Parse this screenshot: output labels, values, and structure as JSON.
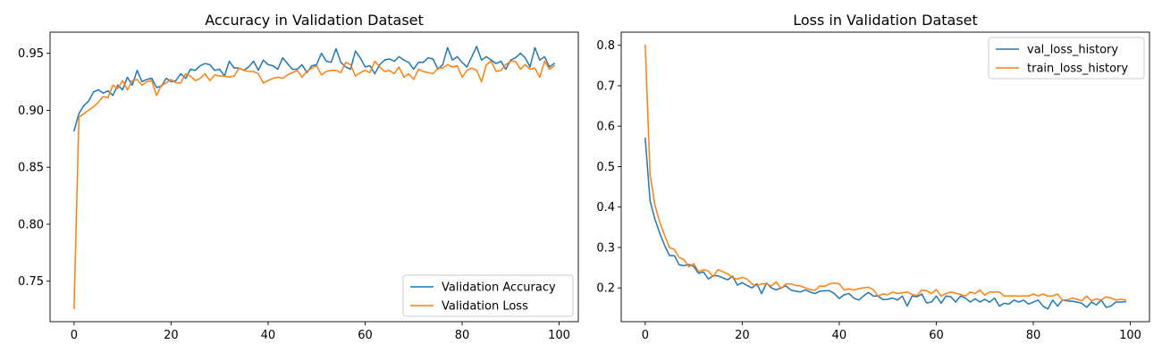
{
  "chart_data": [
    {
      "type": "line",
      "title": "Accuracy in Validation Dataset",
      "xlabel": "",
      "ylabel": "",
      "xlim": [
        -4.95,
        103.95
      ],
      "ylim": [
        0.7145,
        0.9685
      ],
      "xticks": [
        0,
        20,
        40,
        60,
        80,
        100
      ],
      "yticks": [
        0.75,
        0.8,
        0.85,
        0.9,
        0.95
      ],
      "ytick_labels": [
        "0.75",
        "0.80",
        "0.85",
        "0.90",
        "0.95"
      ],
      "grid": false,
      "legend_position": "lower-right",
      "x": [
        0,
        1,
        2,
        3,
        4,
        5,
        6,
        7,
        8,
        9,
        10,
        11,
        12,
        13,
        14,
        15,
        16,
        17,
        18,
        19,
        20,
        21,
        22,
        23,
        24,
        25,
        26,
        27,
        28,
        29,
        30,
        31,
        32,
        33,
        34,
        35,
        36,
        37,
        38,
        39,
        40,
        41,
        42,
        43,
        44,
        45,
        46,
        47,
        48,
        49,
        50,
        51,
        52,
        53,
        54,
        55,
        56,
        57,
        58,
        59,
        60,
        61,
        62,
        63,
        64,
        65,
        66,
        67,
        68,
        69,
        70,
        71,
        72,
        73,
        74,
        75,
        76,
        77,
        78,
        79,
        80,
        81,
        82,
        83,
        84,
        85,
        86,
        87,
        88,
        89,
        90,
        91,
        92,
        93,
        94,
        95,
        96,
        97,
        98,
        99
      ],
      "series": [
        {
          "name": "Validation Accuracy",
          "color": "#1f77b4",
          "values": [
            0.882,
            0.897,
            0.904,
            0.908,
            0.916,
            0.918,
            0.915,
            0.917,
            0.913,
            0.922,
            0.918,
            0.929,
            0.922,
            0.935,
            0.925,
            0.927,
            0.928,
            0.92,
            0.921,
            0.928,
            0.925,
            0.926,
            0.932,
            0.928,
            0.936,
            0.935,
            0.939,
            0.941,
            0.94,
            0.935,
            0.936,
            0.93,
            0.943,
            0.937,
            0.937,
            0.935,
            0.938,
            0.943,
            0.935,
            0.944,
            0.94,
            0.939,
            0.936,
            0.946,
            0.941,
            0.936,
            0.936,
            0.94,
            0.933,
            0.939,
            0.94,
            0.95,
            0.943,
            0.942,
            0.954,
            0.942,
            0.938,
            0.936,
            0.952,
            0.946,
            0.938,
            0.939,
            0.932,
            0.94,
            0.944,
            0.945,
            0.943,
            0.947,
            0.944,
            0.942,
            0.936,
            0.942,
            0.942,
            0.946,
            0.945,
            0.936,
            0.94,
            0.955,
            0.944,
            0.947,
            0.942,
            0.938,
            0.947,
            0.956,
            0.944,
            0.947,
            0.944,
            0.941,
            0.943,
            0.936,
            0.944,
            0.946,
            0.95,
            0.946,
            0.938,
            0.955,
            0.944,
            0.947,
            0.938,
            0.941
          ]
        },
        {
          "name": "Validation Loss",
          "color": "#ff7f0e",
          "values": [
            0.726,
            0.894,
            0.897,
            0.9,
            0.903,
            0.907,
            0.912,
            0.911,
            0.922,
            0.919,
            0.926,
            0.918,
            0.926,
            0.927,
            0.922,
            0.925,
            0.926,
            0.913,
            0.922,
            0.924,
            0.927,
            0.924,
            0.924,
            0.932,
            0.93,
            0.926,
            0.928,
            0.932,
            0.926,
            0.931,
            0.93,
            0.93,
            0.929,
            0.93,
            0.937,
            0.935,
            0.934,
            0.934,
            0.932,
            0.924,
            0.926,
            0.928,
            0.929,
            0.928,
            0.931,
            0.933,
            0.935,
            0.929,
            0.934,
            0.937,
            0.939,
            0.931,
            0.934,
            0.935,
            0.935,
            0.933,
            0.942,
            0.94,
            0.93,
            0.933,
            0.935,
            0.933,
            0.943,
            0.938,
            0.934,
            0.935,
            0.932,
            0.938,
            0.929,
            0.932,
            0.927,
            0.936,
            0.934,
            0.933,
            0.932,
            0.937,
            0.937,
            0.94,
            0.938,
            0.939,
            0.929,
            0.935,
            0.937,
            0.935,
            0.925,
            0.94,
            0.943,
            0.934,
            0.935,
            0.94,
            0.943,
            0.943,
            0.936,
            0.94,
            0.936,
            0.937,
            0.929,
            0.943,
            0.936,
            0.939
          ]
        }
      ]
    },
    {
      "type": "line",
      "title": "Loss in Validation Dataset",
      "xlabel": "",
      "ylabel": "",
      "xlim": [
        -4.95,
        103.95
      ],
      "ylim": [
        0.1165,
        0.8325
      ],
      "xticks": [
        0,
        20,
        40,
        60,
        80,
        100
      ],
      "yticks": [
        0.2,
        0.3,
        0.4,
        0.5,
        0.6,
        0.7,
        0.8
      ],
      "ytick_labels": [
        "0.2",
        "0.3",
        "0.4",
        "0.5",
        "0.6",
        "0.7",
        "0.8"
      ],
      "grid": false,
      "legend_position": "upper-right",
      "x": [
        0,
        1,
        2,
        3,
        4,
        5,
        6,
        7,
        8,
        9,
        10,
        11,
        12,
        13,
        14,
        15,
        16,
        17,
        18,
        19,
        20,
        21,
        22,
        23,
        24,
        25,
        26,
        27,
        28,
        29,
        30,
        31,
        32,
        33,
        34,
        35,
        36,
        37,
        38,
        39,
        40,
        41,
        42,
        43,
        44,
        45,
        46,
        47,
        48,
        49,
        50,
        51,
        52,
        53,
        54,
        55,
        56,
        57,
        58,
        59,
        60,
        61,
        62,
        63,
        64,
        65,
        66,
        67,
        68,
        69,
        70,
        71,
        72,
        73,
        74,
        75,
        76,
        77,
        78,
        79,
        80,
        81,
        82,
        83,
        84,
        85,
        86,
        87,
        88,
        89,
        90,
        91,
        92,
        93,
        94,
        95,
        96,
        97,
        98,
        99
      ],
      "series": [
        {
          "name": "val_loss_history",
          "color": "#1f77b4",
          "values": [
            0.57,
            0.415,
            0.37,
            0.335,
            0.305,
            0.28,
            0.28,
            0.257,
            0.255,
            0.258,
            0.253,
            0.236,
            0.24,
            0.222,
            0.23,
            0.23,
            0.225,
            0.22,
            0.229,
            0.207,
            0.213,
            0.206,
            0.2,
            0.21,
            0.186,
            0.212,
            0.2,
            0.195,
            0.2,
            0.205,
            0.195,
            0.192,
            0.19,
            0.195,
            0.19,
            0.186,
            0.192,
            0.193,
            0.193,
            0.186,
            0.174,
            0.183,
            0.186,
            0.175,
            0.17,
            0.18,
            0.189,
            0.18,
            0.18,
            0.171,
            0.172,
            0.175,
            0.17,
            0.18,
            0.155,
            0.18,
            0.178,
            0.185,
            0.163,
            0.165,
            0.18,
            0.162,
            0.18,
            0.178,
            0.165,
            0.18,
            0.175,
            0.165,
            0.173,
            0.165,
            0.172,
            0.165,
            0.175,
            0.155,
            0.162,
            0.16,
            0.17,
            0.165,
            0.17,
            0.16,
            0.165,
            0.17,
            0.155,
            0.148,
            0.17,
            0.155,
            0.17,
            0.168,
            0.167,
            0.165,
            0.162,
            0.152,
            0.165,
            0.158,
            0.17,
            0.152,
            0.155,
            0.165,
            0.165,
            0.166
          ]
        },
        {
          "name": "train_loss_history",
          "color": "#ff7f0e",
          "values": [
            0.8,
            0.48,
            0.405,
            0.362,
            0.33,
            0.3,
            0.295,
            0.275,
            0.27,
            0.252,
            0.26,
            0.24,
            0.245,
            0.242,
            0.228,
            0.245,
            0.24,
            0.235,
            0.225,
            0.222,
            0.226,
            0.222,
            0.21,
            0.205,
            0.21,
            0.21,
            0.205,
            0.215,
            0.198,
            0.21,
            0.21,
            0.206,
            0.205,
            0.2,
            0.196,
            0.194,
            0.205,
            0.204,
            0.21,
            0.212,
            0.21,
            0.195,
            0.198,
            0.195,
            0.198,
            0.2,
            0.202,
            0.196,
            0.18,
            0.185,
            0.183,
            0.19,
            0.186,
            0.188,
            0.19,
            0.184,
            0.181,
            0.195,
            0.193,
            0.186,
            0.196,
            0.18,
            0.186,
            0.19,
            0.187,
            0.184,
            0.18,
            0.19,
            0.186,
            0.195,
            0.182,
            0.19,
            0.19,
            0.19,
            0.18,
            0.18,
            0.18,
            0.18,
            0.18,
            0.18,
            0.185,
            0.18,
            0.185,
            0.18,
            0.18,
            0.185,
            0.17,
            0.17,
            0.175,
            0.172,
            0.168,
            0.18,
            0.168,
            0.173,
            0.17,
            0.178,
            0.175,
            0.17,
            0.172,
            0.17
          ]
        }
      ]
    }
  ]
}
